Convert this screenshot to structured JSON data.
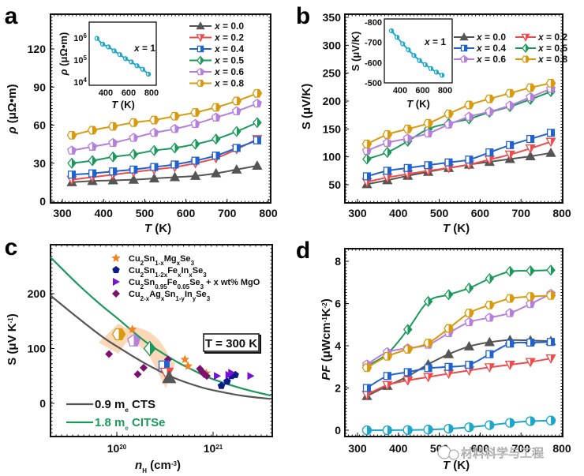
{
  "series_styles": {
    "x=0.0": {
      "label": "x = 0.0",
      "color": "#555555",
      "marker": "triangle-up"
    },
    "x=0.2": {
      "label": "x = 0.2",
      "color": "#f04a4a",
      "marker": "triangle-down"
    },
    "x=0.4": {
      "label": "x = 0.4",
      "color": "#1f63d0",
      "marker": "square"
    },
    "x=0.5": {
      "label": "x = 0.5",
      "color": "#1a9a5a",
      "marker": "diamond"
    },
    "x=0.6": {
      "label": "x = 0.6",
      "color": "#b67fdc",
      "marker": "pentagon"
    },
    "x=0.8": {
      "label": "x = 0.8",
      "color": "#d99a0e",
      "marker": "hexagon"
    },
    "x=1": {
      "label": "x = 1",
      "color": "#1aa7c9",
      "marker": "circle"
    }
  },
  "watermark": "材料科学与工程",
  "chart_data": [
    {
      "panel": "a",
      "type": "line",
      "xlabel": "T (K)",
      "ylabel": "ρ (μΩ•m)",
      "xlim": [
        280,
        810
      ],
      "ylim": [
        0,
        150
      ],
      "xticks": [
        300,
        400,
        500,
        600,
        700,
        800
      ],
      "yticks": [
        0,
        30,
        60,
        90,
        120
      ],
      "legend": "top-right",
      "x": [
        323,
        373,
        423,
        473,
        523,
        573,
        623,
        673,
        723,
        773
      ],
      "series": [
        {
          "name": "x=0.0",
          "values": [
            15,
            16,
            16.5,
            17,
            18,
            19,
            20,
            22,
            25,
            28
          ]
        },
        {
          "name": "x=0.2",
          "values": [
            17,
            19,
            21,
            23,
            25,
            27,
            30,
            34,
            41,
            49
          ]
        },
        {
          "name": "x=0.4",
          "values": [
            21,
            22,
            23.5,
            25,
            27,
            29,
            32,
            36,
            42,
            48
          ]
        },
        {
          "name": "x=0.5",
          "values": [
            30,
            32,
            35,
            37,
            40,
            42,
            45,
            49,
            55,
            62
          ]
        },
        {
          "name": "x=0.6",
          "values": [
            40,
            43,
            46,
            50,
            54,
            57,
            61,
            66,
            71,
            77
          ]
        },
        {
          "name": "x=0.8",
          "values": [
            52,
            56,
            59,
            62,
            64,
            67,
            70,
            74,
            79,
            85
          ]
        }
      ],
      "inset": {
        "type": "line",
        "xlabel": "T (K)",
        "ylabel": "ρ (μΩ•m)",
        "yscale": "log",
        "xticks": [
          400,
          600,
          800
        ],
        "yticks": [
          "10^4",
          "10^5",
          "10^6"
        ],
        "annotation": "x = 1",
        "series": [
          {
            "name": "x=1",
            "x": [
              323,
              373,
              423,
              473,
              523,
              573,
              623,
              673,
              723,
              773
            ],
            "values": [
              950000,
              520000,
              390000,
              260000,
              175000,
              115000,
              82000,
              55000,
              38000,
              23000
            ]
          }
        ]
      }
    },
    {
      "panel": "b",
      "type": "line",
      "xlabel": "T (K)",
      "ylabel": "S (μV/K)",
      "xlim": [
        280,
        810
      ],
      "ylim": [
        20,
        350
      ],
      "xticks": [
        300,
        400,
        500,
        600,
        700,
        800
      ],
      "yticks": [
        50,
        100,
        150,
        200,
        250,
        300,
        350
      ],
      "legend": "top-right",
      "x": [
        323,
        373,
        423,
        473,
        523,
        573,
        623,
        673,
        723,
        773
      ],
      "series": [
        {
          "name": "x=0.0",
          "values": [
            51,
            58,
            66,
            73,
            80,
            86,
            91,
            96,
            101,
            107
          ]
        },
        {
          "name": "x=0.2",
          "values": [
            55,
            63,
            69,
            75,
            80,
            86,
            95,
            104,
            115,
            127
          ]
        },
        {
          "name": "x=0.4",
          "values": [
            65,
            75,
            80,
            85,
            90,
            95,
            108,
            121,
            132,
            143
          ]
        },
        {
          "name": "x=0.5",
          "values": [
            96,
            108,
            128,
            150,
            160,
            168,
            180,
            190,
            203,
            217
          ]
        },
        {
          "name": "x=0.6",
          "values": [
            111,
            125,
            133,
            142,
            158,
            172,
            181,
            192,
            207,
            222
          ]
        },
        {
          "name": "x=0.8",
          "values": [
            123,
            140,
            150,
            160,
            177,
            193,
            204,
            214,
            224,
            232
          ]
        }
      ],
      "inset": {
        "type": "line",
        "xlabel": "T (K)",
        "ylabel": "S (μV/K)",
        "xticks": [
          400,
          600,
          800
        ],
        "yticks": [
          -800,
          -700,
          -600,
          -500
        ],
        "annotation": "x = 1",
        "series": [
          {
            "name": "x=1",
            "x": [
              323,
              373,
              423,
              473,
              523,
              573,
              623,
              673,
              723,
              773
            ],
            "values": [
              -757,
              -725,
              -693,
              -663,
              -636,
              -610,
              -590,
              -571,
              -553,
              -538
            ]
          }
        ]
      }
    },
    {
      "panel": "c",
      "type": "scatter",
      "xlabel": "n_H (cm^-3)",
      "ylabel": "S (μV K^-1)",
      "xscale": "log",
      "xlim": [
        2e+19,
        4e+21
      ],
      "ylim": [
        -60,
        270
      ],
      "xticks": [
        "10^20",
        "10^21"
      ],
      "yticks": [
        0,
        100,
        200
      ],
      "annotation": "T = 300 K",
      "legend": "top",
      "curves": [
        {
          "name": "0.9 m_e CTS",
          "label": "0.9 m",
          "sub": "e",
          "suffix": "CTS",
          "color": "#555555",
          "x": [
            2e+19,
            4e+19,
            7e+19,
            1e+20,
            2e+20,
            4e+20,
            7e+20,
            1e+21,
            2e+21,
            4e+21
          ],
          "values": [
            198,
            155,
            122,
            104,
            72,
            46,
            31,
            24,
            14,
            8
          ]
        },
        {
          "name": "1.8 m_e CITSe",
          "label": "1.8 m",
          "sub": "e",
          "suffix": "CITSe",
          "color": "#1a9a5a",
          "x": [
            2e+19,
            4e+19,
            7e+19,
            1e+20,
            2e+20,
            4e+20,
            7e+20,
            1e+21,
            2e+21,
            4e+21
          ],
          "values": [
            268,
            216,
            178,
            156,
            112,
            78,
            56,
            44,
            27,
            14
          ]
        }
      ],
      "legend_series": [
        {
          "name": "Cu2Sn1-xMgxSe3",
          "parts": [
            [
              "Cu",
              ""
            ],
            [
              "2",
              "sub"
            ],
            [
              "Sn",
              ""
            ],
            [
              "1-x",
              "sub"
            ],
            [
              "Mg",
              ""
            ],
            [
              "x",
              "sub"
            ],
            [
              "Se",
              ""
            ],
            [
              "3",
              "sub"
            ]
          ],
          "color": "#f5811f",
          "marker": "star",
          "x": [
            1.45e+20,
            5.1e+20,
            5.5e+20,
            8.5e+20
          ],
          "values": [
            135,
            80,
            68,
            55
          ]
        },
        {
          "name": "Cu2Sn1-2xFexInxSe3",
          "parts": [
            [
              "Cu",
              ""
            ],
            [
              "2",
              "sub"
            ],
            [
              "Sn",
              ""
            ],
            [
              "1-2x",
              "sub"
            ],
            [
              "Fe",
              ""
            ],
            [
              "x",
              "sub"
            ],
            [
              "In",
              ""
            ],
            [
              "x",
              "sub"
            ],
            [
              "Se",
              ""
            ],
            [
              "3",
              "sub"
            ]
          ],
          "color": "#0d1a8a",
          "marker": "pentagon-filled",
          "x": [
            1.22e+21,
            1.4e+21,
            1.55e+21,
            1.7e+21
          ],
          "values": [
            32,
            40,
            50,
            52
          ]
        },
        {
          "name": "Cu2Sn0.95Fe0.05Se3 + x wt% MgO",
          "parts": [
            [
              "Cu",
              ""
            ],
            [
              "2",
              "sub"
            ],
            [
              "Sn",
              ""
            ],
            [
              "0.95",
              "sub"
            ],
            [
              "Fe",
              ""
            ],
            [
              "0.05",
              "sub"
            ],
            [
              "Se",
              ""
            ],
            [
              "3",
              "sub"
            ],
            [
              " + x wt% MgO",
              ""
            ]
          ],
          "color": "#7a12d6",
          "marker": "triangle-right",
          "x": [
            1.1e+21,
            1.45e+21,
            1.55e+21,
            2.45e+21
          ],
          "values": [
            50,
            52,
            56,
            50
          ]
        },
        {
          "name": "Cu2-xAgxSn1-yInySe3",
          "parts": [
            [
              "Cu",
              ""
            ],
            [
              "2-x",
              "sub"
            ],
            [
              "Ag",
              ""
            ],
            [
              "x",
              "sub"
            ],
            [
              "Sn",
              ""
            ],
            [
              "1-y",
              "sub"
            ],
            [
              "In",
              ""
            ],
            [
              "y",
              "sub"
            ],
            [
              "Se",
              ""
            ],
            [
              "3",
              "sub"
            ]
          ],
          "color": "#7d1170",
          "marker": "diamond-filled",
          "x": [
            8.3e+19,
            1.65e+20,
            1.9e+20,
            3.4e+20,
            7.3e+20,
            7.7e+20,
            8.1e+20,
            8.6e+20
          ],
          "values": [
            90,
            53,
            65,
            80,
            63,
            58,
            53,
            50
          ]
        }
      ],
      "highlight_points": [
        {
          "name": "x=0.8",
          "x": 1.05e+20,
          "value": 126
        },
        {
          "name": "x=0.6",
          "x": 1.5e+20,
          "value": 114
        },
        {
          "name": "x=0.5",
          "x": 2.2e+20,
          "value": 100
        },
        {
          "name": "x=0.4",
          "x": 3.1e+20,
          "value": 68
        },
        {
          "name": "x=0.2",
          "x": 3.3e+20,
          "value": 55
        },
        {
          "name": "x=0.0",
          "x": 3.5e+20,
          "value": 47
        }
      ]
    },
    {
      "panel": "d",
      "type": "line",
      "xlabel": "T (K)",
      "ylabel": "PF (μWcm^-1K^-2)",
      "xlim": [
        280,
        810
      ],
      "ylim": [
        -0.3,
        8.6
      ],
      "xticks": [
        300,
        400,
        500,
        600,
        700,
        800
      ],
      "yticks": [
        0,
        2,
        4,
        6,
        8
      ],
      "x": [
        323,
        373,
        423,
        473,
        523,
        573,
        623,
        673,
        723,
        773
      ],
      "series": [
        {
          "name": "x=0.0",
          "values": [
            1.62,
            2.1,
            2.55,
            3.12,
            3.6,
            3.97,
            4.17,
            4.27,
            4.25,
            4.22
          ]
        },
        {
          "name": "x=0.2",
          "values": [
            1.68,
            2.14,
            2.36,
            2.52,
            2.68,
            2.83,
            2.98,
            3.1,
            3.23,
            3.4
          ]
        },
        {
          "name": "x=0.4",
          "values": [
            2.0,
            2.57,
            2.75,
            2.94,
            3.0,
            3.1,
            3.6,
            4.1,
            4.15,
            4.18
          ]
        },
        {
          "name": "x=0.5",
          "values": [
            3.05,
            3.62,
            4.77,
            6.1,
            6.42,
            6.73,
            7.18,
            7.52,
            7.55,
            7.58
          ]
        },
        {
          "name": "x=0.6",
          "values": [
            3.12,
            3.7,
            3.88,
            4.05,
            4.6,
            5.12,
            5.33,
            5.55,
            5.98,
            6.46
          ]
        },
        {
          "name": "x=0.8",
          "values": [
            2.96,
            3.5,
            3.83,
            4.13,
            4.82,
            5.55,
            5.93,
            6.24,
            6.33,
            6.38
          ]
        },
        {
          "name": "x=1",
          "values": [
            0.0,
            0.0,
            0.01,
            0.03,
            0.07,
            0.14,
            0.24,
            0.35,
            0.43,
            0.46
          ]
        }
      ]
    }
  ]
}
